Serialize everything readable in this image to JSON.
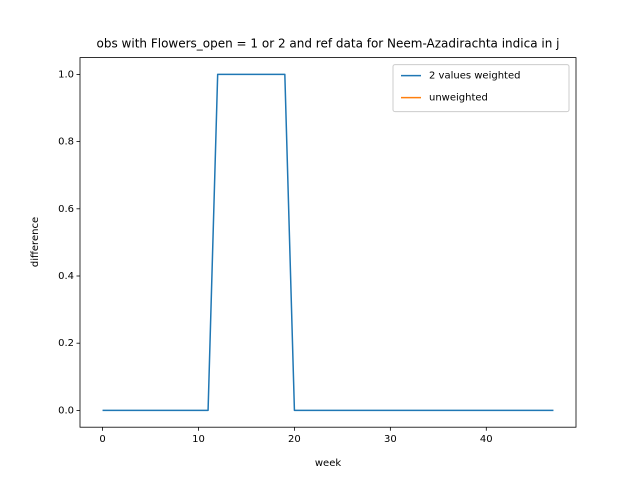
{
  "chart_data": {
    "type": "line",
    "title": "obs with Flowers_open = 1 or 2 and ref data for Neem-Azadirachta indica in j",
    "xlabel": "week",
    "ylabel": "difference",
    "x": [
      0,
      1,
      2,
      3,
      4,
      5,
      6,
      7,
      8,
      9,
      10,
      11,
      12,
      13,
      14,
      15,
      16,
      17,
      18,
      19,
      20,
      21,
      22,
      23,
      24,
      25,
      26,
      27,
      28,
      29,
      30,
      31,
      32,
      33,
      34,
      35,
      36,
      37,
      38,
      39,
      40,
      41,
      42,
      43,
      44,
      45,
      46,
      47
    ],
    "series": [
      {
        "name": "2 values weighted",
        "color": "#1f77b4",
        "values": [
          0,
          0,
          0,
          0,
          0,
          0,
          0,
          0,
          0,
          0,
          0,
          0,
          1,
          1,
          1,
          1,
          1,
          1,
          1,
          1,
          0,
          0,
          0,
          0,
          0,
          0,
          0,
          0,
          0,
          0,
          0,
          0,
          0,
          0,
          0,
          0,
          0,
          0,
          0,
          0,
          0,
          0,
          0,
          0,
          0,
          0,
          0,
          0
        ]
      },
      {
        "name": "unweighted",
        "color": "#ff7f0e",
        "values": [
          null,
          null,
          null,
          null,
          null,
          null,
          null,
          null,
          null,
          null,
          null,
          null,
          null,
          null,
          null,
          null,
          null,
          null,
          null,
          null,
          null,
          null,
          null,
          null,
          null,
          null,
          null,
          null,
          null,
          null,
          null,
          null,
          null,
          null,
          null,
          null,
          null,
          null,
          null,
          null,
          null,
          null,
          null,
          null,
          null,
          null,
          null,
          null
        ]
      }
    ],
    "xlim": [
      -2.35,
      49.35
    ],
    "xticks": [
      0,
      10,
      20,
      30,
      40
    ],
    "ylim": [
      -0.05,
      1.05
    ],
    "yticks": [
      {
        "value": 0,
        "label": "0.0"
      },
      {
        "value": 0.2,
        "label": "0.2"
      },
      {
        "value": 0.4,
        "label": "0.4"
      },
      {
        "value": 0.6,
        "label": "0.6"
      },
      {
        "value": 0.8,
        "label": "0.8"
      },
      {
        "value": 1,
        "label": "1.0"
      }
    ],
    "legend": "upper right",
    "grid": false
  }
}
